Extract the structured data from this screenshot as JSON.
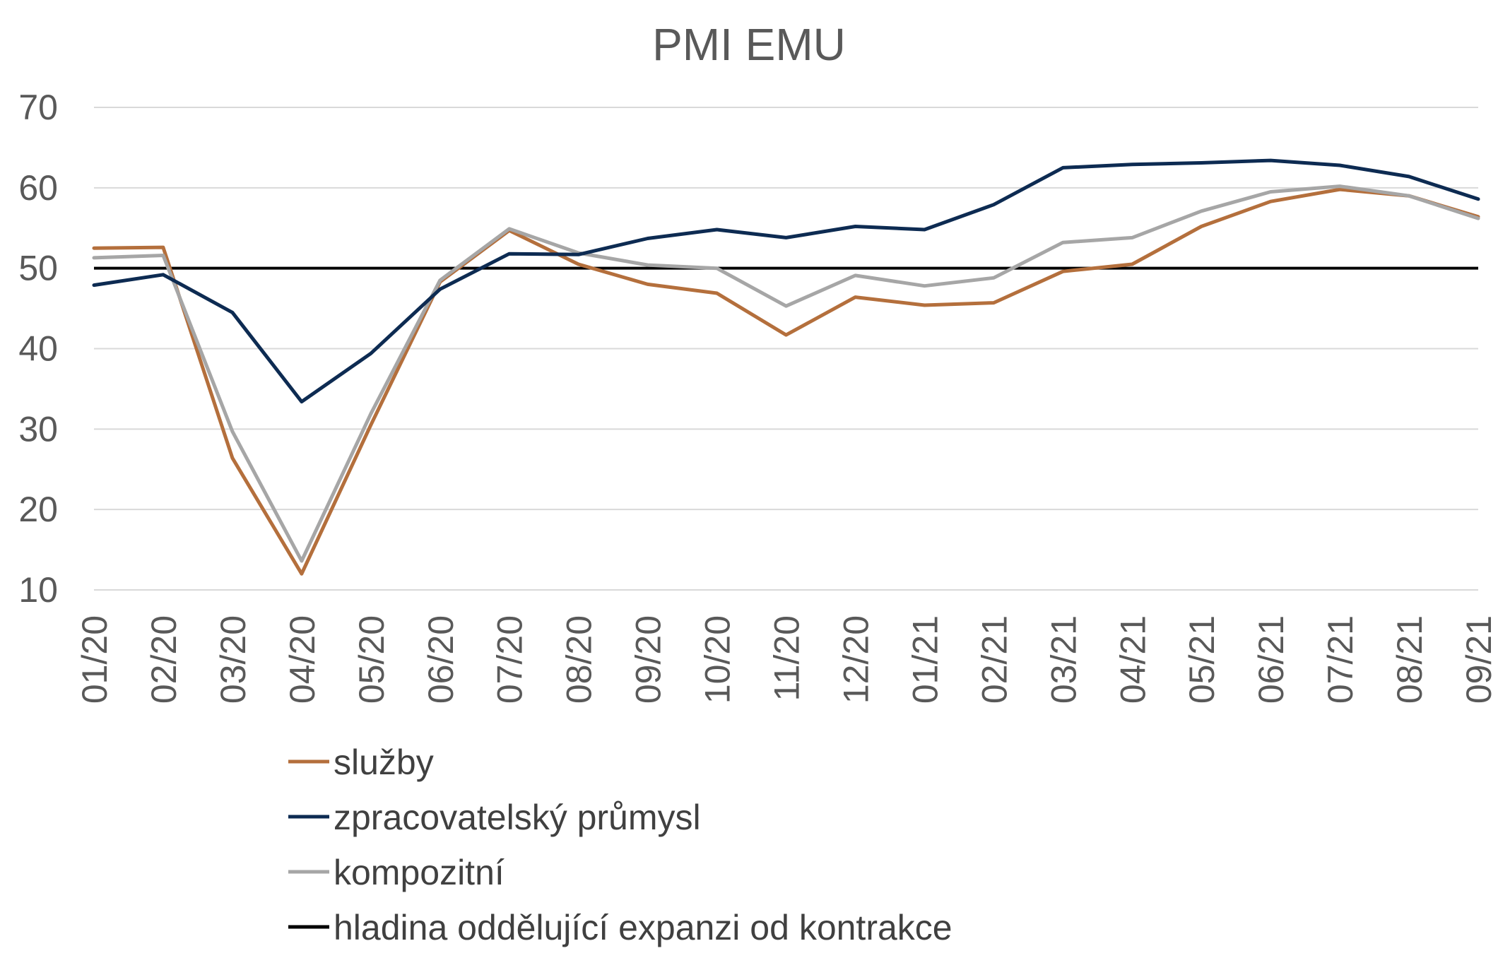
{
  "chart_data": {
    "type": "line",
    "title": "PMI EMU",
    "xlabel": "",
    "ylabel": "",
    "ylim": [
      10,
      70
    ],
    "yticks": [
      10,
      20,
      30,
      40,
      50,
      60,
      70
    ],
    "grid": true,
    "legend_position": "bottom-left",
    "categories": [
      "01/20",
      "02/20",
      "03/20",
      "04/20",
      "05/20",
      "06/20",
      "07/20",
      "08/20",
      "09/20",
      "10/20",
      "11/20",
      "12/20",
      "01/21",
      "02/21",
      "03/21",
      "04/21",
      "05/21",
      "06/21",
      "07/21",
      "08/21",
      "09/21"
    ],
    "series": [
      {
        "name": "služby",
        "color": "#b46f3c",
        "values": [
          52.5,
          52.6,
          26.4,
          12.0,
          30.5,
          48.3,
          54.7,
          50.5,
          48.0,
          46.9,
          41.7,
          46.4,
          45.4,
          45.7,
          49.6,
          50.5,
          55.2,
          58.3,
          59.8,
          59.0,
          56.4
        ]
      },
      {
        "name": "zpracovatelský průmysl",
        "color": "#0d2b52",
        "values": [
          47.9,
          49.2,
          44.5,
          33.4,
          39.4,
          47.4,
          51.8,
          51.7,
          53.7,
          54.8,
          53.8,
          55.2,
          54.8,
          57.9,
          62.5,
          62.9,
          63.1,
          63.4,
          62.8,
          61.4,
          58.6
        ]
      },
      {
        "name": "kompozitní",
        "color": "#a6a6a6",
        "values": [
          51.3,
          51.6,
          29.7,
          13.6,
          31.9,
          48.5,
          54.9,
          51.9,
          50.4,
          50.0,
          45.3,
          49.1,
          47.8,
          48.8,
          53.2,
          53.8,
          57.1,
          59.5,
          60.2,
          59.0,
          56.2
        ]
      }
    ],
    "reference_line": {
      "name": "hladina oddělující expanzi od kontrakce",
      "value": 50,
      "color": "#000000"
    }
  }
}
